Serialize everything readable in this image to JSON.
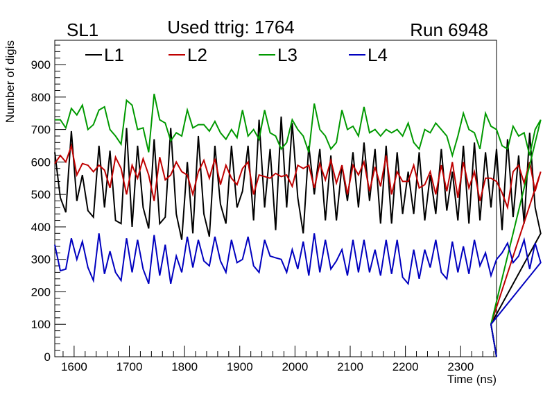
{
  "chart_data": {
    "type": "line",
    "header": {
      "left": "SL1",
      "title": "Used ttrig: 1764",
      "right": "Run 6948"
    },
    "xlabel": "Time (ns)",
    "ylabel": "Number of digis",
    "xlim": [
      1565,
      2365
    ],
    "ylim": [
      0,
      975
    ],
    "x_ticks": [
      1600,
      1700,
      1800,
      1900,
      2000,
      2100,
      2200,
      2300
    ],
    "y_ticks": [
      0,
      100,
      200,
      300,
      400,
      500,
      600,
      700,
      800,
      900
    ],
    "x_tick_labels": [
      "1600",
      "1700",
      "1800",
      "1900",
      "2000",
      "2100",
      "2200",
      "2300"
    ],
    "y_tick_labels": [
      "0",
      "100",
      "200",
      "300",
      "400",
      "500",
      "600",
      "700",
      "800",
      "900"
    ],
    "x_start": 1565,
    "x_step": 10,
    "series": [
      {
        "name": "L1",
        "color": "#000000",
        "values": [
          630,
          490,
          445,
          695,
          480,
          560,
          450,
          430,
          650,
          460,
          635,
          420,
          410,
          705,
          400,
          650,
          460,
          395,
          670,
          410,
          430,
          705,
          440,
          360,
          600,
          380,
          680,
          440,
          370,
          650,
          470,
          410,
          650,
          460,
          510,
          650,
          420,
          730,
          460,
          640,
          390,
          740,
          460,
          720,
          490,
          380,
          650,
          500,
          640,
          420,
          620,
          420,
          590,
          480,
          630,
          460,
          660,
          480,
          640,
          410,
          650,
          410,
          630,
          440,
          570,
          440,
          630,
          420,
          560,
          440,
          640,
          450,
          570,
          420,
          650,
          410,
          660,
          420,
          630,
          460,
          640,
          390,
          670,
          430,
          620,
          410,
          690,
          460,
          380
        ]
      },
      {
        "name": "L2",
        "color": "#bf0000",
        "values": [
          595,
          620,
          600,
          650,
          560,
          595,
          590,
          570,
          590,
          575,
          520,
          615,
          580,
          500,
          590,
          550,
          610,
          560,
          480,
          615,
          545,
          560,
          600,
          570,
          560,
          500,
          570,
          605,
          550,
          610,
          530,
          590,
          550,
          530,
          580,
          600,
          500,
          560,
          555,
          550,
          565,
          555,
          560,
          525,
          590,
          580,
          590,
          520,
          595,
          545,
          605,
          535,
          590,
          500,
          590,
          560,
          600,
          510,
          585,
          525,
          620,
          500,
          570,
          540,
          540,
          590,
          520,
          530,
          570,
          500,
          590,
          510,
          600,
          490,
          600,
          520,
          570,
          480,
          550,
          550,
          540,
          505,
          460,
          570,
          590,
          535,
          600,
          510,
          570
        ]
      },
      {
        "name": "L3",
        "color": "#009900",
        "values": [
          730,
          730,
          705,
          765,
          745,
          775,
          700,
          715,
          760,
          770,
          700,
          680,
          655,
          790,
          775,
          700,
          705,
          630,
          810,
          730,
          720,
          665,
          690,
          680,
          760,
          705,
          715,
          715,
          695,
          725,
          690,
          670,
          700,
          675,
          760,
          680,
          700,
          670,
          760,
          690,
          680,
          640,
          660,
          730,
          700,
          680,
          630,
          780,
          700,
          680,
          640,
          660,
          760,
          700,
          710,
          680,
          770,
          690,
          700,
          680,
          700,
          690,
          700,
          680,
          720,
          660,
          640,
          700,
          690,
          720,
          700,
          680,
          620,
          680,
          750,
          700,
          690,
          640,
          750,
          710,
          700,
          650,
          640,
          710,
          680,
          690,
          620,
          700,
          730
        ]
      },
      {
        "name": "L4",
        "color": "#0000bf",
        "values": [
          345,
          265,
          270,
          365,
          300,
          355,
          275,
          235,
          380,
          255,
          325,
          260,
          235,
          365,
          260,
          360,
          270,
          225,
          375,
          250,
          345,
          225,
          310,
          260,
          370,
          275,
          360,
          295,
          280,
          370,
          295,
          260,
          360,
          290,
          300,
          370,
          280,
          260,
          360,
          310,
          305,
          300,
          260,
          330,
          270,
          355,
          250,
          380,
          260,
          360,
          270,
          295,
          330,
          250,
          360,
          260,
          360,
          260,
          330,
          250,
          360,
          255,
          360,
          245,
          225,
          330,
          240,
          330,
          275,
          360,
          260,
          240,
          355,
          260,
          340,
          255,
          360,
          280,
          320,
          250,
          300,
          320,
          350,
          290,
          310,
          360,
          270,
          350,
          290
        ]
      }
    ],
    "tail": {
      "x": [
        2355,
        2365
      ],
      "values": [
        100,
        0
      ]
    }
  }
}
